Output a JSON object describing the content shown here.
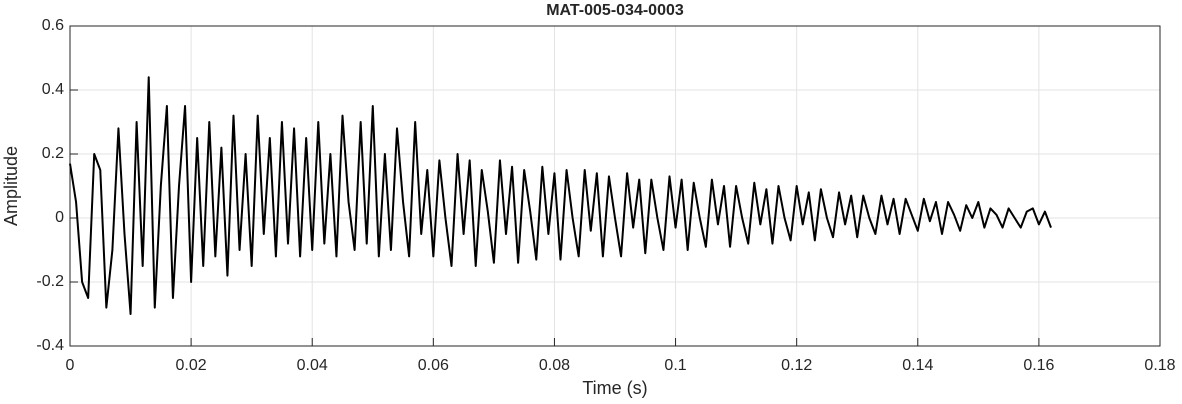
{
  "chart_data": {
    "type": "line",
    "title": "MAT-005-034-0003",
    "x_label": "Time (s)",
    "y_label": "Amplitude",
    "x": [
      0,
      0.001,
      0.002,
      0.003,
      0.004,
      0.005,
      0.006,
      0.007,
      0.008,
      0.009,
      0.01,
      0.011,
      0.012,
      0.013,
      0.014,
      0.015,
      0.016,
      0.017,
      0.018,
      0.019,
      0.02,
      0.021,
      0.022,
      0.023,
      0.024,
      0.025,
      0.026,
      0.027,
      0.028,
      0.029,
      0.03,
      0.031,
      0.032,
      0.033,
      0.034,
      0.035,
      0.036,
      0.037,
      0.038,
      0.039,
      0.04,
      0.041,
      0.042,
      0.043,
      0.044,
      0.045,
      0.046,
      0.047,
      0.048,
      0.049,
      0.05,
      0.051,
      0.052,
      0.053,
      0.054,
      0.055,
      0.056,
      0.057,
      0.058,
      0.059,
      0.06,
      0.061,
      0.062,
      0.063,
      0.064,
      0.065,
      0.066,
      0.067,
      0.068,
      0.069,
      0.07,
      0.071,
      0.072,
      0.073,
      0.074,
      0.075,
      0.076,
      0.077,
      0.078,
      0.079,
      0.08,
      0.081,
      0.082,
      0.083,
      0.084,
      0.085,
      0.086,
      0.087,
      0.088,
      0.089,
      0.09,
      0.091,
      0.092,
      0.093,
      0.094,
      0.095,
      0.096,
      0.097,
      0.098,
      0.099,
      0.1,
      0.101,
      0.102,
      0.103,
      0.104,
      0.105,
      0.106,
      0.107,
      0.108,
      0.109,
      0.11,
      0.111,
      0.112,
      0.113,
      0.114,
      0.115,
      0.116,
      0.117,
      0.118,
      0.119,
      0.12,
      0.121,
      0.122,
      0.123,
      0.124,
      0.125,
      0.126,
      0.127,
      0.128,
      0.129,
      0.13,
      0.131,
      0.132,
      0.133,
      0.134,
      0.135,
      0.136,
      0.137,
      0.138,
      0.139,
      0.14,
      0.141,
      0.142,
      0.143,
      0.144,
      0.145,
      0.146,
      0.147,
      0.148,
      0.149,
      0.15,
      0.151,
      0.152,
      0.153,
      0.154,
      0.155,
      0.156,
      0.157,
      0.158,
      0.159,
      0.16,
      0.161,
      0.162
    ],
    "series": [
      {
        "color": "#000000",
        "values": [
          0.17,
          0.05,
          -0.2,
          -0.25,
          0.2,
          0.15,
          -0.28,
          -0.1,
          0.28,
          -0.05,
          -0.3,
          0.3,
          -0.15,
          0.44,
          -0.28,
          0.1,
          0.35,
          -0.25,
          0.1,
          0.35,
          -0.2,
          0.25,
          -0.15,
          0.3,
          -0.12,
          0.22,
          -0.18,
          0.32,
          -0.1,
          0.2,
          -0.15,
          0.32,
          -0.05,
          0.25,
          -0.12,
          0.3,
          -0.08,
          0.28,
          -0.12,
          0.25,
          -0.1,
          0.3,
          -0.08,
          0.2,
          -0.12,
          0.32,
          0.05,
          -0.1,
          0.3,
          -0.08,
          0.35,
          -0.12,
          0.2,
          -0.1,
          0.28,
          0.05,
          -0.12,
          0.3,
          -0.05,
          0.15,
          -0.12,
          0.18,
          0.0,
          -0.15,
          0.2,
          -0.05,
          0.18,
          -0.15,
          0.15,
          0.02,
          -0.14,
          0.18,
          -0.05,
          0.16,
          -0.14,
          0.15,
          0.02,
          -0.13,
          0.16,
          -0.05,
          0.14,
          -0.13,
          0.15,
          0.0,
          -0.12,
          0.15,
          -0.04,
          0.14,
          -0.12,
          0.13,
          0.0,
          -0.12,
          0.14,
          -0.03,
          0.12,
          -0.11,
          0.12,
          0.0,
          -0.1,
          0.13,
          -0.03,
          0.12,
          -0.1,
          0.11,
          0.0,
          -0.09,
          0.12,
          -0.02,
          0.1,
          -0.09,
          0.1,
          0.0,
          -0.08,
          0.11,
          -0.02,
          0.09,
          -0.08,
          0.1,
          0.0,
          -0.07,
          0.1,
          -0.02,
          0.08,
          -0.07,
          0.09,
          0.0,
          -0.06,
          0.08,
          -0.02,
          0.07,
          -0.06,
          0.07,
          0.0,
          -0.05,
          0.07,
          -0.02,
          0.06,
          -0.05,
          0.06,
          0.01,
          -0.04,
          0.06,
          -0.01,
          0.05,
          -0.05,
          0.05,
          0.01,
          -0.04,
          0.04,
          0.0,
          0.05,
          -0.03,
          0.03,
          0.01,
          -0.03,
          0.03,
          0.0,
          -0.03,
          0.02,
          0.03,
          -0.02,
          0.02,
          -0.03
        ]
      }
    ],
    "xlim": [
      0,
      0.18
    ],
    "xticks": [
      0,
      0.02,
      0.04,
      0.06,
      0.08,
      0.1,
      0.12,
      0.14,
      0.16,
      0.18
    ],
    "ylim": [
      -0.4,
      0.6
    ],
    "yticks": [
      -0.4,
      -0.2,
      0,
      0.2,
      0.4,
      0.6
    ],
    "grid": true
  }
}
